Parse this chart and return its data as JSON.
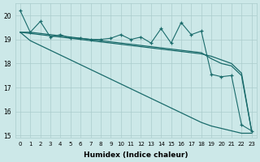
{
  "x": [
    0,
    1,
    2,
    3,
    4,
    5,
    6,
    7,
    8,
    9,
    10,
    11,
    12,
    13,
    14,
    15,
    16,
    17,
    18,
    19,
    20,
    21,
    22,
    23
  ],
  "line_zigzag": [
    20.2,
    19.3,
    19.75,
    19.1,
    19.2,
    19.05,
    19.05,
    19.0,
    19.0,
    19.05,
    19.2,
    19.0,
    19.1,
    18.85,
    19.45,
    18.85,
    19.7,
    19.2,
    19.35,
    17.55,
    17.45,
    17.5,
    15.45,
    15.2
  ],
  "line_smooth1": [
    19.3,
    19.3,
    19.25,
    19.2,
    19.15,
    19.1,
    19.05,
    19.0,
    18.95,
    18.9,
    18.85,
    18.8,
    18.75,
    18.7,
    18.65,
    18.6,
    18.55,
    18.5,
    18.45,
    18.2,
    18.0,
    17.9,
    17.5,
    15.2
  ],
  "line_smooth2": [
    19.3,
    19.25,
    19.2,
    19.15,
    19.1,
    19.05,
    19.0,
    18.95,
    18.9,
    18.85,
    18.8,
    18.75,
    18.7,
    18.65,
    18.6,
    18.55,
    18.5,
    18.45,
    18.4,
    18.3,
    18.15,
    18.0,
    17.6,
    15.2
  ],
  "line_diagonal": [
    19.3,
    18.95,
    18.75,
    18.55,
    18.35,
    18.15,
    17.95,
    17.75,
    17.55,
    17.35,
    17.15,
    16.95,
    16.75,
    16.55,
    16.35,
    16.15,
    15.95,
    15.75,
    15.55,
    15.4,
    15.3,
    15.2,
    15.1,
    15.1
  ],
  "bg_color": "#cce8e8",
  "grid_color": "#aacccc",
  "line_color": "#1a6b6b",
  "xlabel": "Humidex (Indice chaleur)",
  "ylim": [
    14.9,
    20.5
  ],
  "xlim": [
    -0.5,
    23.5
  ],
  "yticks": [
    15,
    16,
    17,
    18,
    19,
    20
  ],
  "xticks": [
    0,
    1,
    2,
    3,
    4,
    5,
    6,
    7,
    8,
    9,
    10,
    11,
    12,
    13,
    14,
    15,
    16,
    17,
    18,
    19,
    20,
    21,
    22,
    23
  ],
  "xlabel_fontsize": 6.5,
  "tick_fontsize": 5.5
}
